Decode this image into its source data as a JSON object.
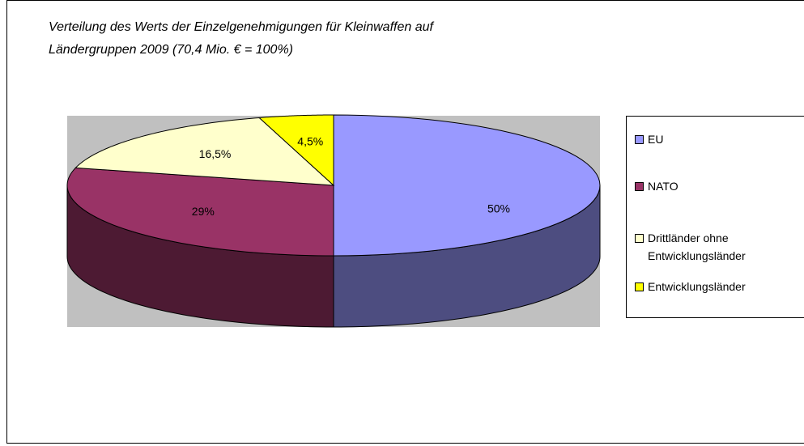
{
  "chart_data": {
    "type": "pie3d",
    "title": [
      "Verteilung des Werts der Einzelgenehmigungen für Kleinwaffen auf",
      "Ländergruppen 2009 (70,4 Mio. € = 100%)"
    ],
    "categories": [
      "EU",
      "NATO",
      "Drittländer ohne Entwicklungsländer",
      "Entwicklungsländer"
    ],
    "values": [
      50,
      29,
      16.5,
      4.5
    ],
    "value_labels": [
      "50%",
      "29%",
      "16,5%",
      "4,5%"
    ],
    "colors": [
      "#9999ff",
      "#993366",
      "#ffffcc",
      "#ffff00"
    ],
    "legend": "right"
  }
}
